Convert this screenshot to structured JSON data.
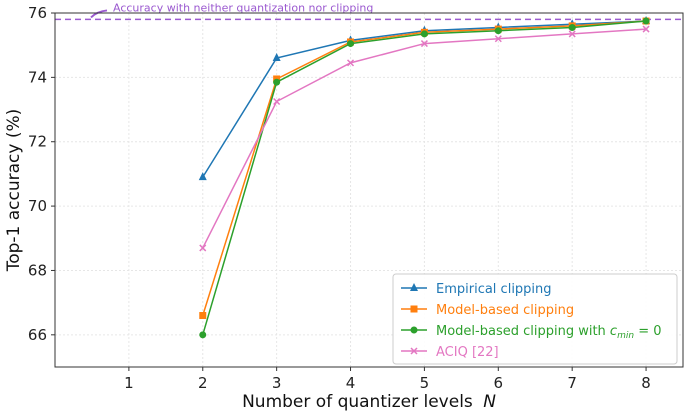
{
  "chart_data": {
    "type": "line",
    "xlabel": "Number of quantizer levels",
    "xlabel_var": "N",
    "ylabel": "Top-1 accuracy (%)",
    "xlim": [
      0,
      8.5
    ],
    "ylim": [
      65,
      76
    ],
    "xticks": [
      1,
      2,
      3,
      4,
      5,
      6,
      7,
      8
    ],
    "yticks": [
      66,
      68,
      70,
      72,
      74,
      76
    ],
    "grid": true,
    "legend_position": "bottom-right",
    "reference_line": {
      "y": 75.8,
      "label": "Accuracy with neither quantization nor clipping",
      "color": "#9b59d0"
    },
    "series": [
      {
        "name": "Empirical clipping",
        "color": "#1f77b4",
        "marker": "triangle",
        "x": [
          2,
          3,
          4,
          5,
          6,
          7,
          8
        ],
        "y": [
          70.9,
          74.6,
          75.15,
          75.45,
          75.55,
          75.65,
          75.75
        ]
      },
      {
        "name": "Model-based clipping",
        "color": "#ff7f0e",
        "marker": "square",
        "x": [
          2,
          3,
          4,
          5,
          6,
          7,
          8
        ],
        "y": [
          66.6,
          73.95,
          75.1,
          75.4,
          75.5,
          75.6,
          75.75
        ]
      },
      {
        "name": "Model-based clipping with c_min = 0",
        "legend_main": "Model-based clipping with ",
        "legend_var": "c",
        "legend_sub": "min",
        "legend_tail": " = 0",
        "color": "#2ca02c",
        "marker": "circle",
        "x": [
          2,
          3,
          4,
          5,
          6,
          7,
          8
        ],
        "y": [
          66.0,
          73.85,
          75.05,
          75.35,
          75.45,
          75.55,
          75.75
        ]
      },
      {
        "name": "ACIQ [22]",
        "color": "#e377c2",
        "marker": "x",
        "x": [
          2,
          3,
          4,
          5,
          6,
          7,
          8
        ],
        "y": [
          68.7,
          73.25,
          74.45,
          75.05,
          75.2,
          75.35,
          75.5
        ]
      }
    ]
  }
}
